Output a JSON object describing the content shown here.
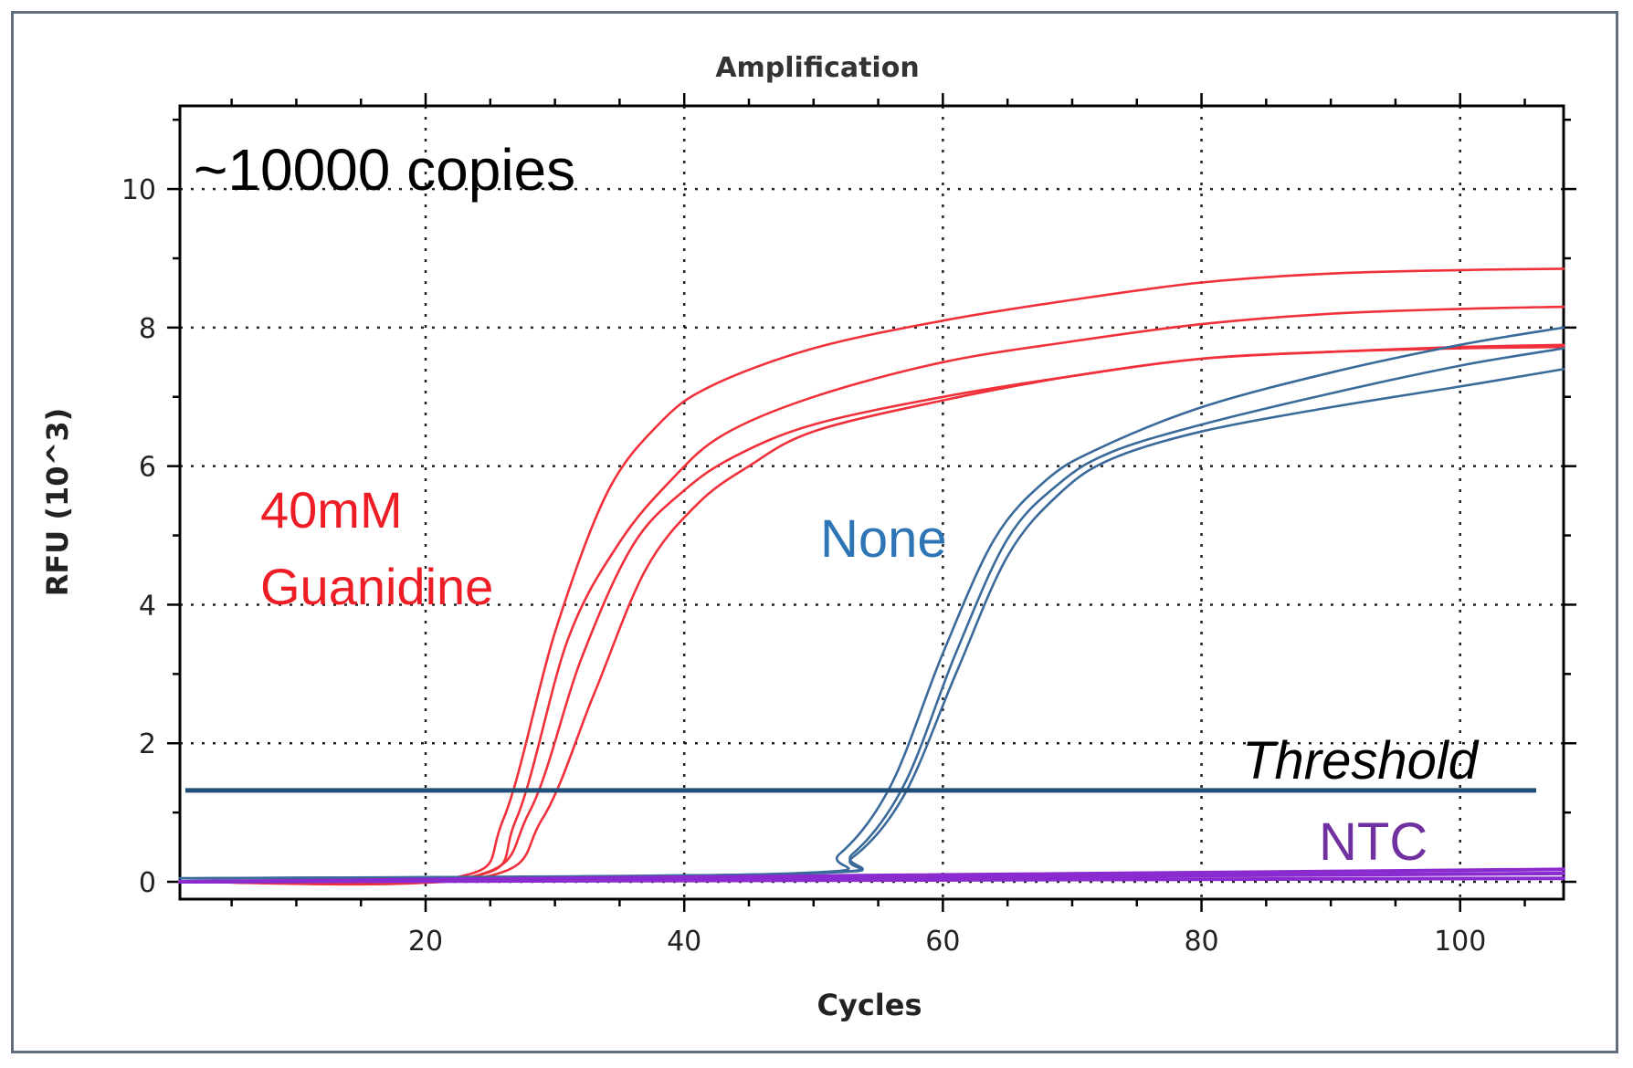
{
  "chart_data": {
    "type": "line",
    "title": "Amplification",
    "xlabel": "Cycles",
    "ylabel": "RFU (10^3)",
    "xlim": [
      1,
      108
    ],
    "ylim": [
      -0.25,
      11.2
    ],
    "x_ticks": [
      20,
      40,
      60,
      80,
      100
    ],
    "y_ticks": [
      0,
      2,
      4,
      6,
      8,
      10
    ],
    "grid": true,
    "threshold": 1.32,
    "annotations": {
      "copies": "~10000 copies",
      "guanidine_line1": "40mM",
      "guanidine_line2": "Guanidine",
      "none": "None",
      "threshold": "Threshold",
      "ntc": "NTC"
    },
    "colors": {
      "guanidine": "#f0303a",
      "none": "#3a6a9a",
      "ntc": "#8a2bd0",
      "threshold": "#1f4e79",
      "copies_text": "#000000",
      "guanidine_text": "#ee1c25",
      "none_text": "#2e75b6",
      "ntc_text": "#7030a0"
    },
    "series": [
      {
        "group": "guanidine",
        "x": [
          1,
          22,
          26,
          30,
          34,
          38,
          42,
          50,
          60,
          70,
          80,
          90,
          100,
          108
        ],
        "y": [
          0,
          0.05,
          0.9,
          3.6,
          5.6,
          6.6,
          7.15,
          7.7,
          8.1,
          8.4,
          8.65,
          8.78,
          8.83,
          8.85
        ]
      },
      {
        "group": "guanidine",
        "x": [
          1,
          23,
          27,
          31,
          35,
          39,
          43,
          50,
          60,
          70,
          80,
          90,
          100,
          108
        ],
        "y": [
          0,
          0.05,
          0.9,
          3.5,
          4.9,
          5.8,
          6.45,
          7.0,
          7.5,
          7.8,
          8.05,
          8.2,
          8.27,
          8.3
        ]
      },
      {
        "group": "guanidine",
        "x": [
          1,
          23,
          28,
          32,
          36,
          40,
          44,
          50,
          60,
          70,
          80,
          90,
          100,
          108
        ],
        "y": [
          0,
          0.05,
          1.0,
          3.2,
          4.85,
          5.65,
          6.15,
          6.6,
          7.0,
          7.3,
          7.55,
          7.65,
          7.7,
          7.72
        ]
      },
      {
        "group": "guanidine",
        "x": [
          1,
          24,
          29,
          33,
          37,
          41,
          45,
          50,
          60,
          70,
          80,
          90,
          100,
          108
        ],
        "y": [
          0,
          0.05,
          0.9,
          2.7,
          4.5,
          5.45,
          6.0,
          6.5,
          6.95,
          7.3,
          7.55,
          7.65,
          7.72,
          7.75
        ]
      },
      {
        "group": "none",
        "x": [
          1,
          48,
          52,
          56,
          60,
          64,
          68,
          72,
          80,
          90,
          100,
          108
        ],
        "y": [
          0.05,
          0.12,
          0.4,
          1.4,
          3.3,
          4.95,
          5.8,
          6.25,
          6.85,
          7.35,
          7.75,
          8.0
        ]
      },
      {
        "group": "none",
        "x": [
          1,
          49,
          53,
          57,
          61,
          65,
          69,
          73,
          80,
          90,
          100,
          108
        ],
        "y": [
          0.05,
          0.12,
          0.4,
          1.4,
          3.3,
          4.95,
          5.75,
          6.2,
          6.6,
          7.05,
          7.45,
          7.7
        ]
      },
      {
        "group": "none",
        "x": [
          1,
          49,
          53,
          57,
          61,
          65,
          69,
          73,
          80,
          90,
          100,
          108
        ],
        "y": [
          0.05,
          0.12,
          0.35,
          1.25,
          3.0,
          4.7,
          5.6,
          6.1,
          6.5,
          6.85,
          7.15,
          7.4
        ]
      },
      {
        "group": "ntc",
        "x": [
          1,
          108
        ],
        "y": [
          0.0,
          0.18
        ]
      },
      {
        "group": "ntc",
        "x": [
          1,
          108
        ],
        "y": [
          0.0,
          0.12
        ]
      },
      {
        "group": "ntc",
        "x": [
          1,
          108
        ],
        "y": [
          0.0,
          0.05
        ]
      }
    ]
  }
}
